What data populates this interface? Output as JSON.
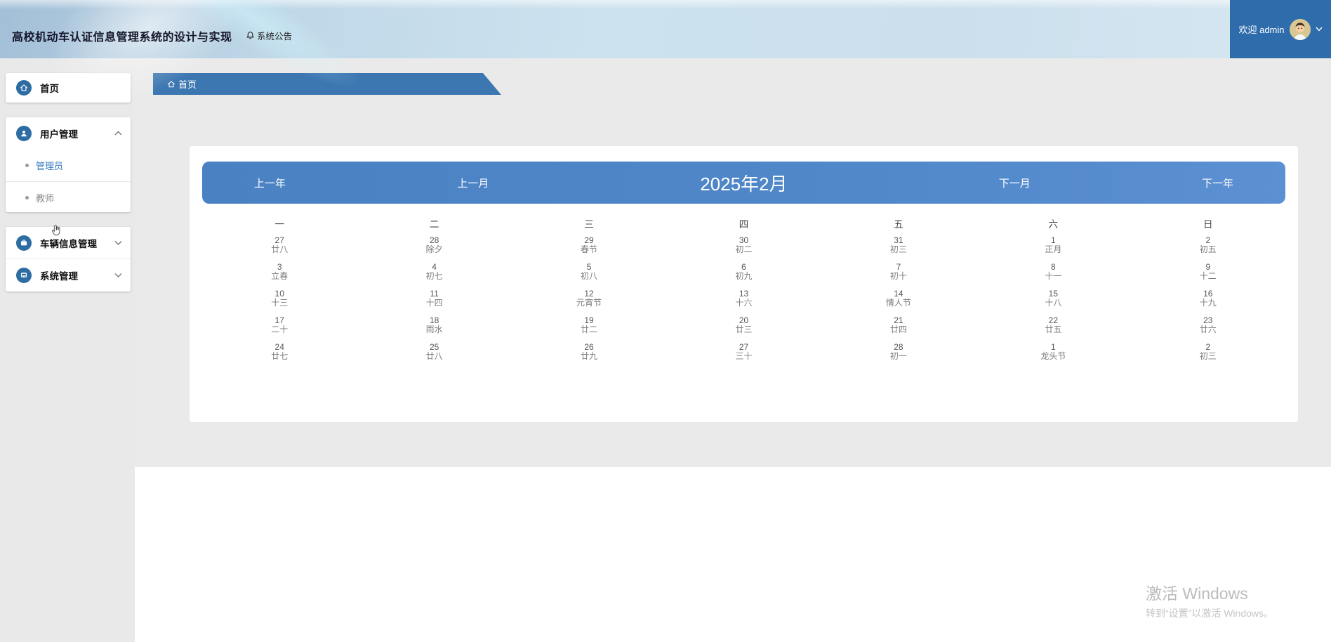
{
  "header": {
    "app_title": "高校机动车认证信息管理系统的设计与实现",
    "announcement_label": "系统公告",
    "welcome_text": "欢迎 admin"
  },
  "breadcrumb": {
    "home_label": "首页"
  },
  "sidebar": {
    "items": [
      {
        "label": "首页",
        "icon": "home-icon"
      },
      {
        "label": "用户管理",
        "icon": "user-icon",
        "expanded": true,
        "children": [
          {
            "label": "管理员",
            "active": true
          },
          {
            "label": "教师",
            "active": false
          }
        ]
      },
      {
        "label": "车辆信息管理",
        "icon": "vehicle-icon",
        "expanded": false
      },
      {
        "label": "系统管理",
        "icon": "system-icon",
        "expanded": false
      }
    ]
  },
  "calendar": {
    "nav_prev_year": "上一年",
    "nav_prev_month": "上一月",
    "title": "2025年2月",
    "nav_next_month": "下一月",
    "nav_next_year": "下一年",
    "weekdays": [
      "一",
      "二",
      "三",
      "四",
      "五",
      "六",
      "日"
    ],
    "days": [
      {
        "d": "27",
        "l": "廿八"
      },
      {
        "d": "28",
        "l": "除夕"
      },
      {
        "d": "29",
        "l": "春节"
      },
      {
        "d": "30",
        "l": "初二"
      },
      {
        "d": "31",
        "l": "初三"
      },
      {
        "d": "1",
        "l": "正月"
      },
      {
        "d": "2",
        "l": "初五"
      },
      {
        "d": "3",
        "l": "立春"
      },
      {
        "d": "4",
        "l": "初七"
      },
      {
        "d": "5",
        "l": "初八"
      },
      {
        "d": "6",
        "l": "初九"
      },
      {
        "d": "7",
        "l": "初十"
      },
      {
        "d": "8",
        "l": "十一"
      },
      {
        "d": "9",
        "l": "十二"
      },
      {
        "d": "10",
        "l": "十三"
      },
      {
        "d": "11",
        "l": "十四"
      },
      {
        "d": "12",
        "l": "元宵节"
      },
      {
        "d": "13",
        "l": "十六"
      },
      {
        "d": "14",
        "l": "情人节"
      },
      {
        "d": "15",
        "l": "十八"
      },
      {
        "d": "16",
        "l": "十九"
      },
      {
        "d": "17",
        "l": "二十"
      },
      {
        "d": "18",
        "l": "雨水"
      },
      {
        "d": "19",
        "l": "廿二"
      },
      {
        "d": "20",
        "l": "廿三"
      },
      {
        "d": "21",
        "l": "廿四"
      },
      {
        "d": "22",
        "l": "廿五"
      },
      {
        "d": "23",
        "l": "廿六"
      },
      {
        "d": "24",
        "l": "廿七"
      },
      {
        "d": "25",
        "l": "廿八"
      },
      {
        "d": "26",
        "l": "廿九"
      },
      {
        "d": "27",
        "l": "三十"
      },
      {
        "d": "28",
        "l": "初一"
      },
      {
        "d": "1",
        "l": "龙头节"
      },
      {
        "d": "2",
        "l": "初三"
      }
    ]
  },
  "watermark": {
    "line1": "激活 Windows",
    "line2": "转到“设置”以激活 Windows。"
  },
  "colors": {
    "user_box_blue": "#2e6cab",
    "breadcrumb_blue": "#3c77b1",
    "calendar_header_blue": "#4f87c9",
    "sidebar_icon_blue": "#2e6da4",
    "active_link_blue": "#3a7cc0"
  }
}
